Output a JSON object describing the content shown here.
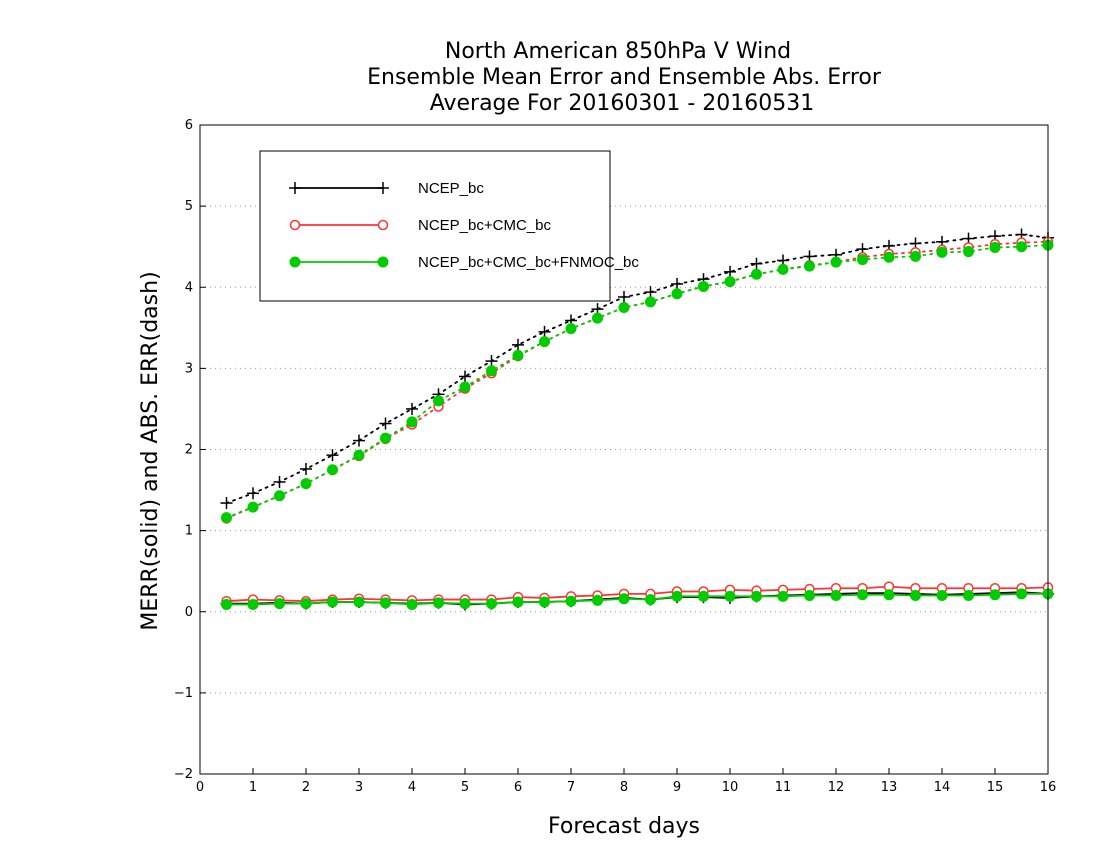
{
  "chart_data": {
    "type": "line",
    "title": [
      "North American 850hPa V Wind",
      "Ensemble Mean Error and Ensemble Abs. Error",
      "Average For 20160301 - 20160531"
    ],
    "xlabel": "Forecast days",
    "ylabel": "MERR(solid) and ABS. ERR(dash)",
    "xlim": [
      0,
      16
    ],
    "ylim": [
      -2,
      6
    ],
    "xticks": [
      0,
      1,
      2,
      3,
      4,
      5,
      6,
      7,
      8,
      9,
      10,
      11,
      12,
      13,
      14,
      15,
      16
    ],
    "yticks": [
      -2,
      -1,
      0,
      1,
      2,
      3,
      4,
      5,
      6
    ],
    "grid": "horizontal dotted",
    "legend_position": "top-left",
    "x": [
      0.5,
      1,
      1.5,
      2,
      2.5,
      3,
      3.5,
      4,
      4.5,
      5,
      5.5,
      6,
      6.5,
      7,
      7.5,
      8,
      8.5,
      9,
      9.5,
      10,
      10.5,
      11,
      11.5,
      12,
      12.5,
      13,
      13.5,
      14,
      14.5,
      15,
      15.5,
      16
    ],
    "series": [
      {
        "name": "NCEP_bc",
        "color": "#000000",
        "marker": "plus",
        "abs_err": [
          1.34,
          1.46,
          1.6,
          1.76,
          1.93,
          2.11,
          2.32,
          2.5,
          2.68,
          2.9,
          3.09,
          3.29,
          3.45,
          3.59,
          3.73,
          3.88,
          3.94,
          4.04,
          4.1,
          4.19,
          4.29,
          4.33,
          4.38,
          4.4,
          4.47,
          4.51,
          4.54,
          4.56,
          4.6,
          4.63,
          4.65,
          4.61
        ],
        "mean_err": [
          0.1,
          0.1,
          0.11,
          0.1,
          0.12,
          0.12,
          0.11,
          0.1,
          0.11,
          0.09,
          0.1,
          0.12,
          0.12,
          0.13,
          0.15,
          0.17,
          0.15,
          0.18,
          0.18,
          0.17,
          0.19,
          0.2,
          0.21,
          0.22,
          0.23,
          0.23,
          0.22,
          0.21,
          0.22,
          0.23,
          0.24,
          0.22
        ]
      },
      {
        "name": "NCEP_bc+CMC_bc",
        "color": "#ff3333",
        "marker": "open-circle",
        "abs_err": [
          1.15,
          1.29,
          1.43,
          1.58,
          1.75,
          1.92,
          2.13,
          2.31,
          2.53,
          2.75,
          2.94,
          3.15,
          3.33,
          3.49,
          3.62,
          3.75,
          3.82,
          3.92,
          4.01,
          4.07,
          4.16,
          4.22,
          4.27,
          4.31,
          4.37,
          4.41,
          4.43,
          4.46,
          4.49,
          4.53,
          4.55,
          4.56
        ],
        "mean_err": [
          0.13,
          0.15,
          0.14,
          0.13,
          0.15,
          0.16,
          0.15,
          0.14,
          0.15,
          0.15,
          0.15,
          0.18,
          0.17,
          0.19,
          0.2,
          0.22,
          0.22,
          0.25,
          0.25,
          0.27,
          0.26,
          0.27,
          0.28,
          0.29,
          0.29,
          0.31,
          0.29,
          0.29,
          0.29,
          0.29,
          0.29,
          0.3
        ]
      },
      {
        "name": "NCEP_bc+CMC_bc+FNMOC_bc",
        "color": "#00cc00",
        "marker": "filled-circle",
        "abs_err": [
          1.16,
          1.29,
          1.43,
          1.58,
          1.75,
          1.93,
          2.14,
          2.34,
          2.6,
          2.77,
          2.97,
          3.16,
          3.33,
          3.49,
          3.62,
          3.75,
          3.82,
          3.92,
          4.01,
          4.07,
          4.16,
          4.22,
          4.26,
          4.31,
          4.34,
          4.37,
          4.38,
          4.43,
          4.44,
          4.49,
          4.5,
          4.52
        ],
        "mean_err": [
          0.09,
          0.09,
          0.1,
          0.1,
          0.12,
          0.12,
          0.11,
          0.09,
          0.11,
          0.1,
          0.1,
          0.12,
          0.12,
          0.13,
          0.14,
          0.16,
          0.15,
          0.19,
          0.19,
          0.19,
          0.19,
          0.19,
          0.2,
          0.2,
          0.21,
          0.21,
          0.2,
          0.2,
          0.2,
          0.21,
          0.22,
          0.22
        ]
      }
    ]
  }
}
